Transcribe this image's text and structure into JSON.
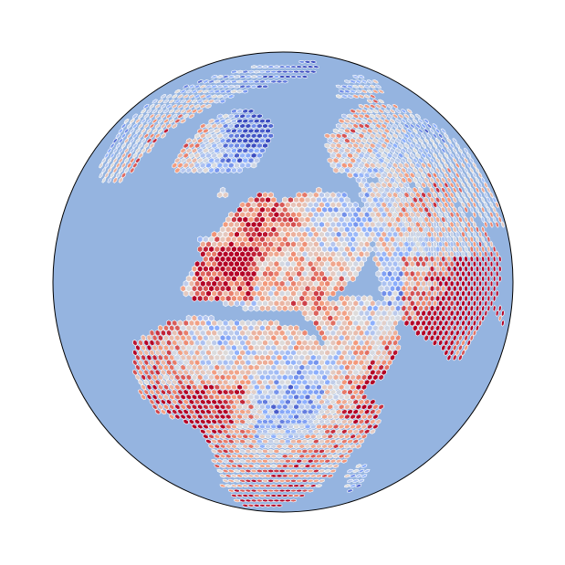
{
  "map": {
    "projection": "orthographic",
    "center_lon": 30,
    "center_lat": 35,
    "colormap": "coolwarm",
    "ocean_color": "#95b4e0",
    "outline_color": "#000000",
    "cell_edge_color": "#ffffff",
    "grid_type": "hexagonal",
    "colorbar_visible": false,
    "title_visible": false
  }
}
